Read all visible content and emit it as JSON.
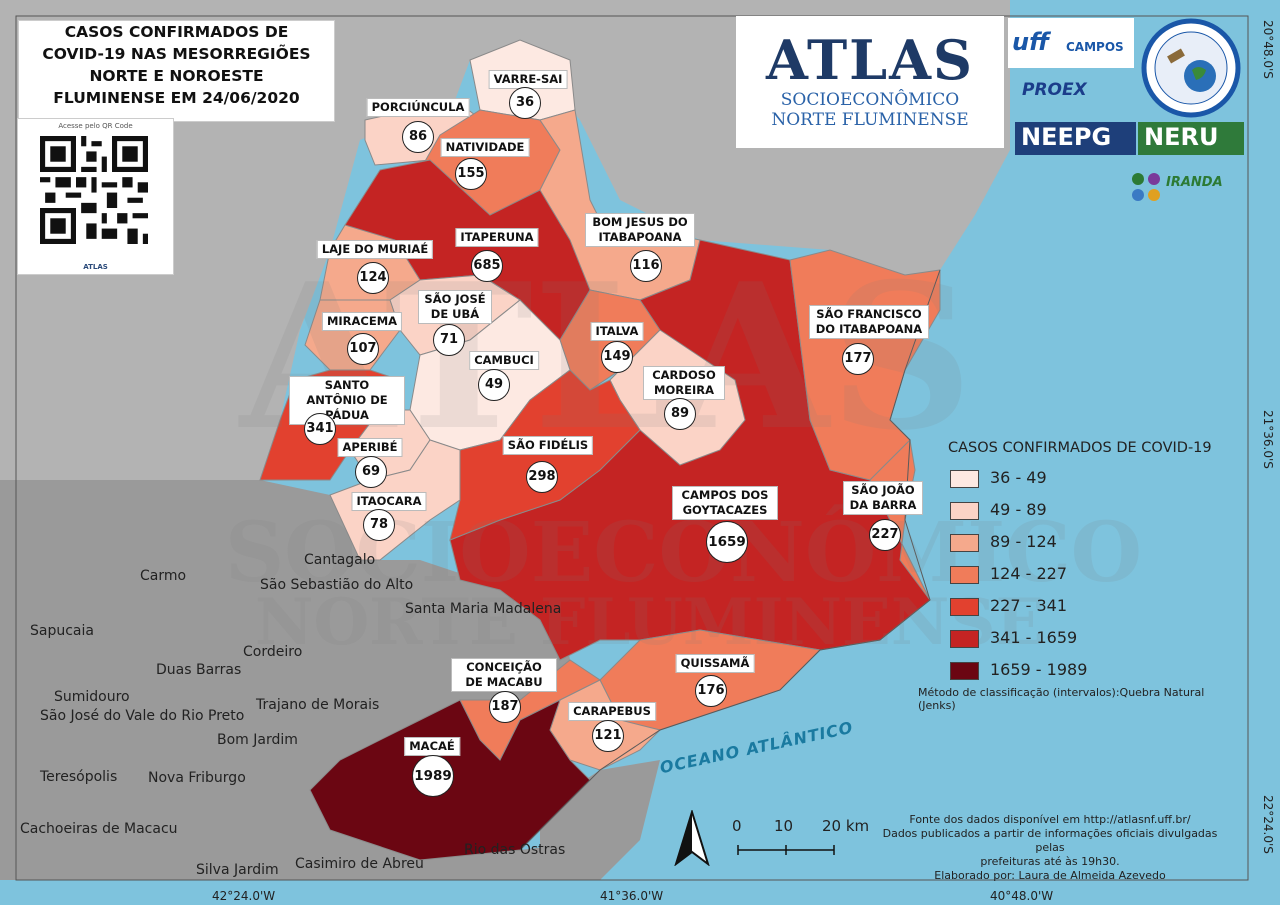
{
  "title": "CASOS CONFIRMADOS DE COVID-19 NAS MESORREGIÕES NORTE E NOROESTE FLUMINENSE EM 24/06/2020",
  "title_lines": [
    "CASOS CONFIRMADOS DE",
    "COVID-19 NAS MESORREGIÕES",
    "NORTE E NOROESTE",
    "FLUMINENSE EM 24/06/2020"
  ],
  "qr": {
    "caption": "Acesse pelo QR Code",
    "brand": "ATLAS"
  },
  "logo": {
    "main": "ATLAS",
    "line1": "SOCIOECONÔMICO",
    "line2": "NORTE FLUMINENSE"
  },
  "partner_logos": {
    "uff": "uff",
    "uff_campus": "CAMPOS",
    "proex": "PROEX",
    "neepg": "NEEPG",
    "neru": "NERU",
    "ciranda": "IRANDA"
  },
  "legend": {
    "title": "CASOS CONFIRMADOS DE COVID-19",
    "classes": [
      {
        "label": "36 - 49",
        "color": "#fde9e2"
      },
      {
        "label": "49 - 89",
        "color": "#fbd3c6"
      },
      {
        "label": "89 - 124",
        "color": "#f5a98c"
      },
      {
        "label": "124 - 227",
        "color": "#f07c5a"
      },
      {
        "label": "227 - 341",
        "color": "#e2412f"
      },
      {
        "label": "341 - 1659",
        "color": "#c42423"
      },
      {
        "label": "1659 - 1989",
        "color": "#6b0612"
      }
    ],
    "method": "Método de classificação (intervalos):Quebra Natural (Jenks)"
  },
  "municipalities": [
    {
      "name": "VARRE-SAI",
      "cases": 36
    },
    {
      "name": "PORCIÚNCULA",
      "cases": 86
    },
    {
      "name": "NATIVIDADE",
      "cases": 155
    },
    {
      "name": "BOM JESUS DO ITABAPOANA",
      "cases": 116
    },
    {
      "name": "ITAPERUNA",
      "cases": 685
    },
    {
      "name": "LAJE DO MURIAÉ",
      "cases": 124
    },
    {
      "name": "SÃO JOSÉ DE UBÁ",
      "cases": 71
    },
    {
      "name": "MIRACEMA",
      "cases": 107
    },
    {
      "name": "ITALVA",
      "cases": 149
    },
    {
      "name": "CAMBUCI",
      "cases": 49
    },
    {
      "name": "SÃO FRANCISCO DO ITABAPOANA",
      "cases": 177
    },
    {
      "name": "CARDOSO MOREIRA",
      "cases": 89
    },
    {
      "name": "SANTO ANTÔNIO DE PÁDUA",
      "cases": 341
    },
    {
      "name": "APERIBÉ",
      "cases": 69
    },
    {
      "name": "SÃO FIDÉLIS",
      "cases": 298
    },
    {
      "name": "ITAOCARA",
      "cases": 78
    },
    {
      "name": "CAMPOS DOS GOYTACAZES",
      "cases": 1659
    },
    {
      "name": "SÃO JOÃO DA BARRA",
      "cases": 227
    },
    {
      "name": "CONCEIÇÃO DE MACABU",
      "cases": 187
    },
    {
      "name": "QUISSAMÃ",
      "cases": 176
    },
    {
      "name": "CARAPEBUS",
      "cases": 121
    },
    {
      "name": "MACAÉ",
      "cases": 1989
    }
  ],
  "other_places": [
    "Cantagalo",
    "São Sebastião do Alto",
    "Carmo",
    "Santa Maria Madalena",
    "Sapucaia",
    "Duas Barras",
    "Cordeiro",
    "Sumidouro",
    "São José do Vale do Rio Preto",
    "Trajano de Morais",
    "Bom Jardim",
    "Teresópolis",
    "Nova Friburgo",
    "Cachoeiras de Macacu",
    "Silva Jardim",
    "Casimiro de Abreu",
    "Rio das Ostras"
  ],
  "ocean_label": "OCEANO ATLÂNTICO",
  "scale": {
    "labels": [
      "0",
      "10",
      "20 km"
    ]
  },
  "source_lines": [
    "Fonte dos dados disponível em http://atlasnf.uff.br/",
    "Dados publicados a partir de informações oficiais divulgadas pelas",
    "prefeituras até às 19h30.",
    "Elaborado por: Laura de Almeida Azevedo"
  ],
  "coords": {
    "bottom": [
      "42°24.0'W",
      "41°36.0'W",
      "40°48.0'W"
    ],
    "right": [
      "20°48.0'S",
      "21°36.0'S",
      "22°24.0'S"
    ]
  },
  "watermark": [
    "ATLAS",
    "SOCIOECONÔMICO",
    "NORTE FLUMINENSE"
  ],
  "colors": {
    "ocean": "#7ec3dd",
    "outside_land": "#9a9a9a",
    "outside_land_light": "#b3b3b3",
    "border": "#333333"
  }
}
